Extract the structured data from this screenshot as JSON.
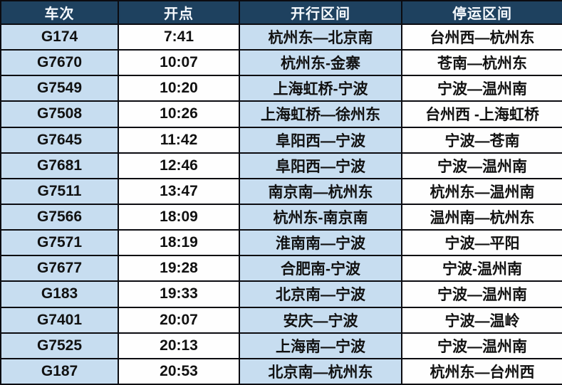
{
  "table": {
    "columns": [
      {
        "key": "train",
        "label": "车次"
      },
      {
        "key": "time",
        "label": "开点"
      },
      {
        "key": "route",
        "label": "开行区间"
      },
      {
        "key": "suspended",
        "label": "停运区间"
      }
    ],
    "rows": [
      [
        "G174",
        "7:41",
        "杭州东—北京南",
        "台州西—杭州东"
      ],
      [
        "G7670",
        "10:07",
        "杭州东-金寨",
        "苍南—杭州东"
      ],
      [
        "G7549",
        "10:20",
        "上海虹桥-宁波",
        "宁波—温州南"
      ],
      [
        "G7508",
        "10:26",
        "上海虹桥—徐州东",
        "台州西 -上海虹桥"
      ],
      [
        "G7645",
        "11:42",
        "阜阳西—宁波",
        "宁波—苍南"
      ],
      [
        "G7681",
        "12:46",
        "阜阳西—宁波",
        "宁波—温州南"
      ],
      [
        "G7511",
        "13:47",
        "南京南—杭州东",
        "杭州东—温州南"
      ],
      [
        "G7566",
        "18:09",
        "杭州东-南京南",
        "温州南—杭州东"
      ],
      [
        "G7571",
        "18:19",
        "淮南南—宁波",
        "宁波—平阳"
      ],
      [
        "G7677",
        "19:28",
        "合肥南-宁波",
        "宁波-温州南"
      ],
      [
        "G183",
        "19:33",
        "北京南—宁波",
        "宁波—温州南"
      ],
      [
        "G7401",
        "20:07",
        "安庆—宁波",
        "宁波—温岭"
      ],
      [
        "G7525",
        "20:13",
        "上海南—宁波",
        "宁波—温州南"
      ],
      [
        "G187",
        "20:53",
        "北京南—杭州东",
        "杭州东—台州西"
      ]
    ]
  },
  "colors": {
    "header_bg": "#1E415F",
    "header_text": "#F5F9FD",
    "cell_blue": "#C7DDF0",
    "cell_white": "#FEFEFE",
    "border": "#0B0B10",
    "text": "#111111"
  }
}
